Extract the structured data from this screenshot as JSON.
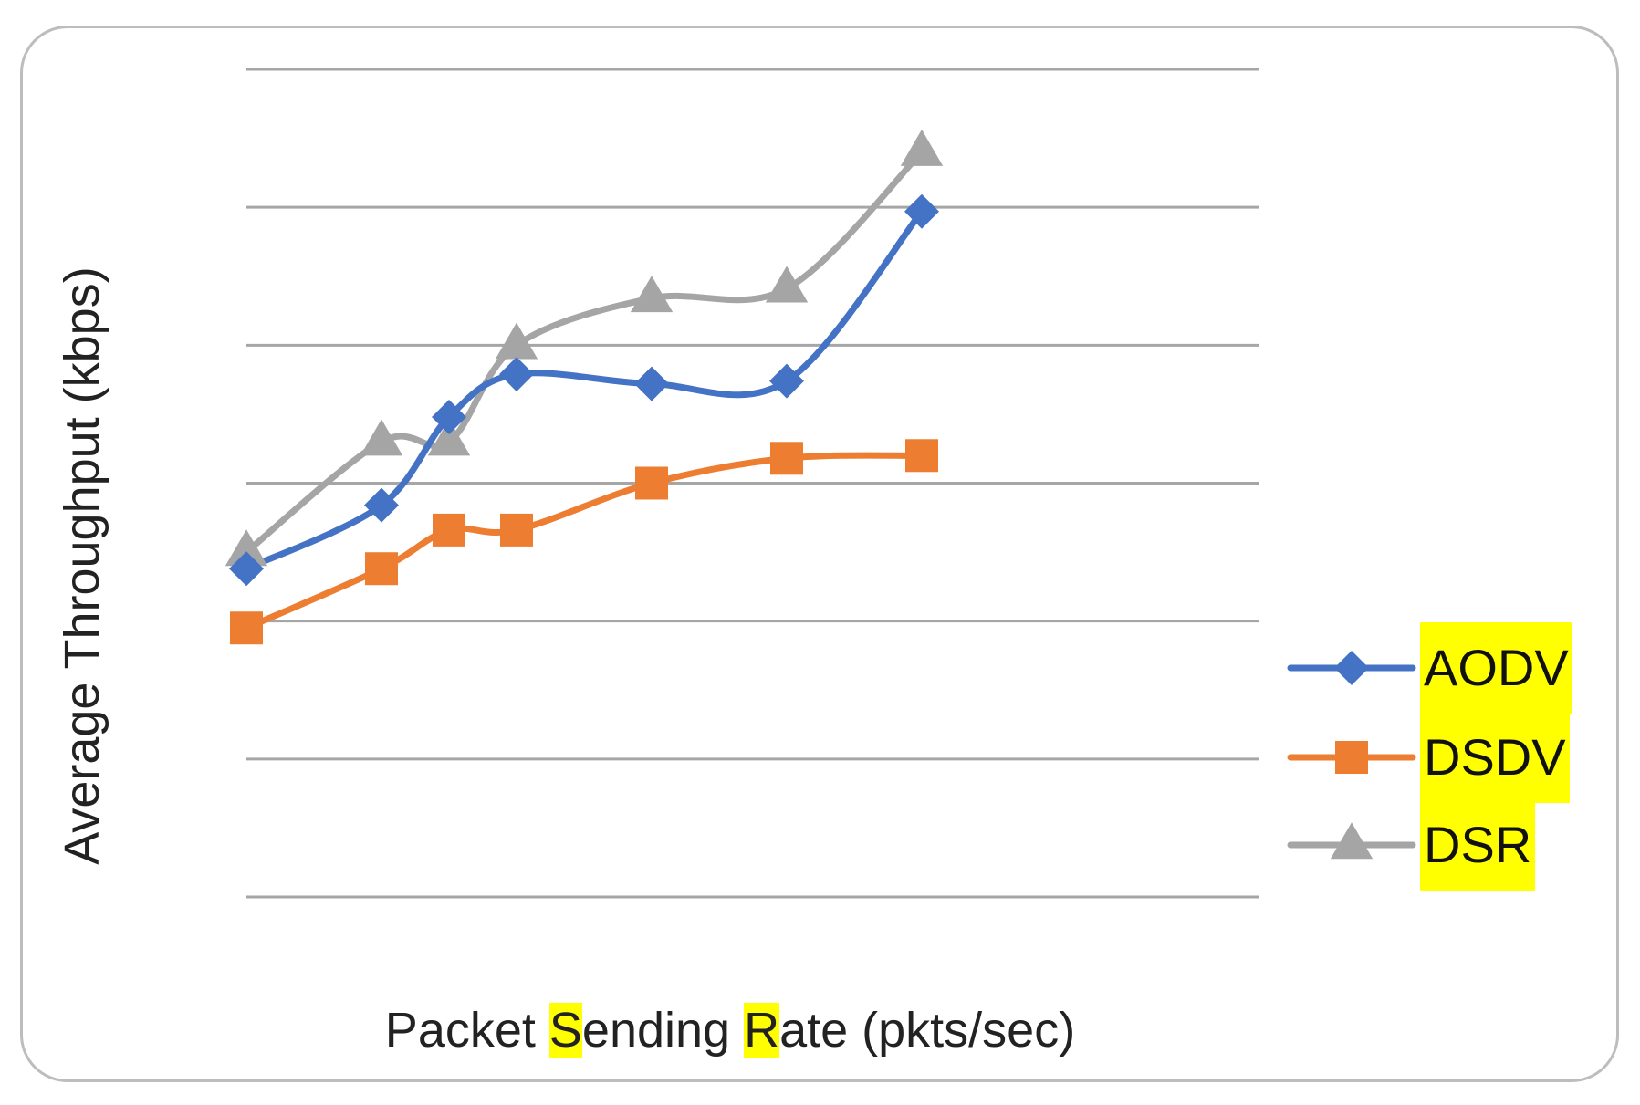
{
  "chart_data": {
    "type": "line",
    "xlabel_parts": [
      {
        "text": "Packet ",
        "hl": false
      },
      {
        "text": "S",
        "hl": true
      },
      {
        "text": "ending ",
        "hl": false
      },
      {
        "text": "R",
        "hl": true
      },
      {
        "text": "ate (pkts/sec)",
        "hl": false
      }
    ],
    "ylabel": "Average Throughput (kbps)",
    "x": [
      1,
      2,
      2.5,
      3,
      4,
      5,
      6
    ],
    "ylim": [
      0,
      6
    ],
    "gridlines": [
      0,
      1,
      2,
      3,
      4,
      5,
      6
    ],
    "legend_position": "right",
    "series": [
      {
        "name": "AODV",
        "color": "#4472c4",
        "marker": "diamond",
        "values": [
          2.38,
          2.84,
          3.48,
          3.79,
          3.72,
          3.74,
          4.97
        ]
      },
      {
        "name": "DSDV",
        "color": "#ed7d31",
        "marker": "square",
        "values": [
          1.95,
          2.38,
          2.66,
          2.66,
          3.0,
          3.18,
          3.2
        ]
      },
      {
        "name": "DSR",
        "color": "#a5a5a5",
        "marker": "triangle",
        "values": [
          2.5,
          3.3,
          3.3,
          4.0,
          4.34,
          4.41,
          5.4
        ]
      }
    ]
  }
}
